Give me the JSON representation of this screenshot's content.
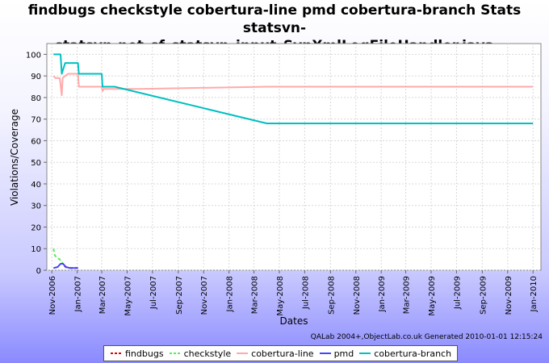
{
  "chart_data": {
    "type": "line",
    "title_line1": "findbugs checkstyle cobertura-line pmd cobertura-branch  Stats statsvn-",
    "title_line2": "statsvn-net_sf_statsvn_input_SvnXmlLogFileHandler.java",
    "xlabel": "Dates",
    "ylabel": "Violations/Coverage",
    "ylim": [
      0,
      105
    ],
    "yticks": [
      0,
      10,
      20,
      30,
      40,
      50,
      60,
      70,
      80,
      90,
      100
    ],
    "xlim": [
      "2006-10-20",
      "2010-01-20"
    ],
    "xticks": [
      {
        "date": "2006-11-01",
        "label": "Nov-2006"
      },
      {
        "date": "2007-01-01",
        "label": "Jan-2007"
      },
      {
        "date": "2007-03-01",
        "label": "Mar-2007"
      },
      {
        "date": "2007-05-01",
        "label": "May-2007"
      },
      {
        "date": "2007-07-01",
        "label": "Jul-2007"
      },
      {
        "date": "2007-09-01",
        "label": "Sep-2007"
      },
      {
        "date": "2007-11-01",
        "label": "Nov-2007"
      },
      {
        "date": "2008-01-01",
        "label": "Jan-2008"
      },
      {
        "date": "2008-03-01",
        "label": "Mar-2008"
      },
      {
        "date": "2008-05-01",
        "label": "May-2008"
      },
      {
        "date": "2008-07-01",
        "label": "Jul-2008"
      },
      {
        "date": "2008-09-01",
        "label": "Sep-2008"
      },
      {
        "date": "2008-11-01",
        "label": "Nov-2008"
      },
      {
        "date": "2009-01-01",
        "label": "Jan-2009"
      },
      {
        "date": "2009-03-01",
        "label": "Mar-2009"
      },
      {
        "date": "2009-05-01",
        "label": "May-2009"
      },
      {
        "date": "2009-07-01",
        "label": "Jul-2009"
      },
      {
        "date": "2009-09-01",
        "label": "Sep-2009"
      },
      {
        "date": "2009-11-01",
        "label": "Nov-2009"
      },
      {
        "date": "2010-01-01",
        "label": "Jan-2010"
      }
    ],
    "grid": true,
    "legend_position": "bottom",
    "series": [
      {
        "name": "findbugs",
        "color": "#dd0000",
        "dash": "4,3",
        "points": [
          [
            "2006-12-01",
            2
          ],
          [
            "2006-12-05",
            1.5
          ],
          [
            "2006-12-15",
            1
          ],
          [
            "2007-01-03",
            1
          ]
        ]
      },
      {
        "name": "checkstyle",
        "color": "#55ee55",
        "dash": "4,3",
        "points": [
          [
            "2006-11-05",
            10
          ],
          [
            "2006-11-08",
            7
          ],
          [
            "2006-11-12",
            6
          ],
          [
            "2006-11-20",
            5
          ],
          [
            "2006-11-28",
            3
          ],
          [
            "2006-12-05",
            1
          ]
        ]
      },
      {
        "name": "cobertura-line",
        "color": "#ffaaaa",
        "dash": "",
        "points": [
          [
            "2006-11-05",
            90
          ],
          [
            "2006-11-10",
            89
          ],
          [
            "2006-11-20",
            89
          ],
          [
            "2006-11-25",
            81
          ],
          [
            "2006-11-27",
            89
          ],
          [
            "2006-12-03",
            90
          ],
          [
            "2006-12-10",
            91
          ],
          [
            "2007-01-03",
            91
          ],
          [
            "2007-01-05",
            85
          ],
          [
            "2007-03-01",
            85
          ],
          [
            "2007-03-03",
            83
          ],
          [
            "2007-03-06",
            84
          ],
          [
            "2007-06-01",
            84
          ],
          [
            "2008-04-01",
            85
          ],
          [
            "2010-01-01",
            85
          ]
        ]
      },
      {
        "name": "pmd",
        "color": "#4444ff",
        "dash": "",
        "points": [
          [
            "2006-11-05",
            1
          ],
          [
            "2006-11-15",
            1.5
          ],
          [
            "2006-11-22",
            3
          ],
          [
            "2006-11-28",
            3
          ],
          [
            "2006-12-05",
            1.5
          ],
          [
            "2006-12-15",
            1
          ],
          [
            "2007-01-03",
            1
          ]
        ]
      },
      {
        "name": "cobertura-branch",
        "color": "#00c0c0",
        "dash": "",
        "points": [
          [
            "2006-11-05",
            100
          ],
          [
            "2006-11-22",
            100
          ],
          [
            "2006-11-25",
            91
          ],
          [
            "2006-12-03",
            96
          ],
          [
            "2007-01-03",
            96
          ],
          [
            "2007-01-05",
            91
          ],
          [
            "2007-03-01",
            91
          ],
          [
            "2007-03-03",
            85
          ],
          [
            "2007-04-01",
            85
          ],
          [
            "2008-04-01",
            68
          ],
          [
            "2010-01-01",
            68
          ]
        ]
      }
    ]
  },
  "credit": "QALab 2004+,ObjectLab.co.uk  Generated 2010-01-01 12:15:24"
}
